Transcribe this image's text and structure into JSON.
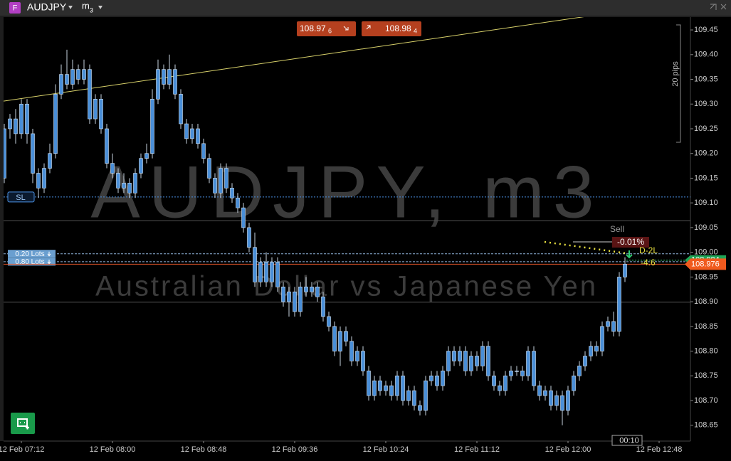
{
  "toolbar": {
    "symbol_badge": "F",
    "symbol": "AUDJPY",
    "timeframe": "m",
    "timeframe_sub": "3"
  },
  "trade_buttons": {
    "sell_main": "108.97",
    "sell_small": "6",
    "buy_main": "108.98",
    "buy_small": "4"
  },
  "chart_data": {
    "type": "candlestick",
    "watermark_title": "AUDJPY, m3",
    "watermark_subtitle": "Australian Dollar vs Japanese Yen",
    "categories": [
      null,
      null,
      null,
      null,
      "12 Feb 07:12",
      null,
      null,
      null,
      null,
      null,
      null,
      null,
      null,
      null,
      null,
      null,
      null,
      null,
      null,
      null,
      "12 Feb 08:00",
      null,
      null,
      null,
      null,
      null,
      null,
      null,
      null,
      null,
      null,
      null,
      null,
      null,
      null,
      null,
      "12 Feb 08:48",
      null,
      null,
      null,
      null,
      null,
      null,
      null,
      null,
      null,
      null,
      null,
      null,
      null,
      null,
      null,
      "12 Feb 09:36",
      null,
      null,
      null,
      null,
      null,
      null,
      null,
      null,
      null,
      null,
      null,
      null,
      null,
      null,
      null,
      "12 Feb 10:24",
      null,
      null,
      null,
      null,
      null,
      null,
      null,
      null,
      null,
      null,
      null,
      null,
      null,
      null,
      null,
      "12 Feb 11:12",
      null,
      null,
      null,
      null,
      null,
      null,
      null,
      null,
      null,
      null,
      null,
      null,
      null,
      null,
      null,
      "12 Feb 12:00",
      null,
      null,
      null,
      null,
      null,
      null,
      null,
      null,
      null,
      null,
      null,
      null,
      null,
      null,
      null,
      "12 Feb 12:48"
    ],
    "open": [
      109.23,
      109.15,
      109.25,
      109.27,
      109.24,
      109.3,
      109.24,
      109.16,
      109.13,
      109.17,
      109.2,
      109.32,
      109.36,
      109.34,
      109.37,
      109.35,
      109.37,
      109.27,
      109.31,
      109.25,
      109.18,
      109.16,
      109.13,
      109.14,
      109.12,
      109.16,
      109.19,
      109.2,
      109.31,
      109.37,
      109.34,
      109.37,
      109.32,
      109.26,
      109.23,
      109.25,
      109.22,
      109.19,
      109.15,
      109.12,
      109.17,
      109.13,
      109.11,
      109.09,
      109.05,
      109.01,
      108.94,
      108.98,
      108.94,
      108.98,
      108.93,
      108.9,
      108.92,
      108.88,
      108.93,
      108.92,
      108.93,
      108.91,
      108.87,
      108.85,
      108.8,
      108.84,
      108.82,
      108.78,
      108.8,
      108.76,
      108.71,
      108.74,
      108.72,
      108.73,
      108.71,
      108.75,
      108.7,
      108.72,
      108.69,
      108.68,
      108.74,
      108.75,
      108.73,
      108.76,
      108.8,
      108.78,
      108.8,
      108.76,
      108.79,
      108.77,
      108.81,
      108.75,
      108.73,
      108.72,
      108.75,
      108.76,
      108.76,
      108.75,
      108.8,
      108.73,
      108.71,
      108.72,
      108.69,
      108.71,
      108.68,
      108.72,
      108.75,
      108.77,
      108.79,
      108.81,
      108.8,
      108.85,
      108.86,
      108.84,
      108.95,
      null,
      null,
      null,
      null,
      null,
      null
    ],
    "high": [
      109.25,
      109.26,
      109.28,
      109.29,
      109.31,
      109.31,
      109.25,
      109.17,
      109.18,
      109.22,
      109.34,
      109.38,
      109.41,
      109.39,
      109.38,
      109.39,
      109.38,
      109.32,
      109.32,
      109.26,
      109.2,
      109.17,
      109.16,
      109.15,
      109.17,
      109.2,
      109.22,
      109.33,
      109.39,
      109.38,
      109.4,
      109.38,
      109.33,
      109.27,
      109.26,
      109.26,
      109.23,
      109.2,
      109.16,
      109.18,
      109.18,
      109.14,
      109.12,
      109.1,
      109.06,
      109.04,
      108.99,
      109.0,
      108.99,
      108.99,
      108.94,
      108.93,
      108.93,
      108.94,
      108.95,
      108.94,
      108.94,
      108.92,
      108.88,
      108.86,
      108.85,
      108.85,
      108.83,
      108.81,
      108.81,
      108.77,
      108.75,
      108.75,
      108.74,
      108.74,
      108.76,
      108.76,
      108.73,
      108.73,
      108.7,
      108.75,
      108.76,
      108.76,
      108.77,
      108.81,
      108.81,
      108.81,
      108.81,
      108.8,
      108.8,
      108.82,
      108.82,
      108.76,
      108.74,
      108.76,
      108.77,
      108.77,
      108.77,
      108.81,
      108.81,
      108.74,
      108.73,
      108.73,
      108.72,
      108.72,
      108.73,
      108.76,
      108.78,
      108.8,
      108.82,
      108.82,
      108.86,
      108.87,
      108.88,
      108.96,
      108.99,
      null,
      null,
      null,
      null,
      null,
      null
    ],
    "low": [
      109.13,
      109.14,
      109.23,
      109.22,
      109.23,
      109.22,
      109.14,
      109.11,
      109.12,
      109.16,
      109.19,
      109.31,
      109.33,
      109.33,
      109.34,
      109.34,
      109.26,
      109.26,
      109.24,
      109.17,
      109.15,
      109.12,
      109.12,
      109.11,
      109.11,
      109.15,
      109.18,
      109.19,
      109.3,
      109.33,
      109.33,
      109.31,
      109.25,
      109.22,
      109.22,
      109.21,
      109.18,
      109.14,
      109.11,
      109.11,
      109.12,
      109.1,
      109.08,
      109.04,
      109.0,
      108.93,
      108.93,
      108.93,
      108.93,
      108.92,
      108.89,
      108.87,
      108.87,
      108.87,
      108.91,
      108.91,
      108.9,
      108.86,
      108.84,
      108.79,
      108.77,
      108.81,
      108.77,
      108.77,
      108.75,
      108.7,
      108.7,
      108.71,
      108.71,
      108.7,
      108.7,
      108.69,
      108.69,
      108.68,
      108.67,
      108.67,
      108.73,
      108.72,
      108.72,
      108.75,
      108.77,
      108.77,
      108.75,
      108.75,
      108.76,
      108.76,
      108.74,
      108.72,
      108.71,
      108.71,
      108.74,
      108.75,
      108.74,
      108.74,
      108.72,
      108.7,
      108.7,
      108.68,
      108.68,
      108.65,
      108.67,
      108.71,
      108.74,
      108.76,
      108.78,
      108.79,
      108.79,
      108.84,
      108.83,
      108.83,
      108.94,
      null,
      null,
      null,
      null,
      null,
      null
    ],
    "close": [
      109.15,
      109.25,
      109.27,
      109.24,
      109.3,
      109.24,
      109.16,
      109.13,
      109.17,
      109.2,
      109.32,
      109.36,
      109.34,
      109.37,
      109.35,
      109.37,
      109.27,
      109.31,
      109.25,
      109.18,
      109.16,
      109.13,
      109.14,
      109.12,
      109.16,
      109.19,
      109.2,
      109.31,
      109.37,
      109.34,
      109.37,
      109.32,
      109.26,
      109.23,
      109.25,
      109.22,
      109.19,
      109.15,
      109.12,
      109.17,
      109.13,
      109.11,
      109.09,
      109.05,
      109.01,
      108.94,
      108.98,
      108.94,
      108.98,
      108.93,
      108.9,
      108.92,
      108.88,
      108.93,
      108.92,
      108.93,
      108.91,
      108.87,
      108.85,
      108.8,
      108.84,
      108.82,
      108.78,
      108.8,
      108.76,
      108.71,
      108.74,
      108.72,
      108.73,
      108.71,
      108.75,
      108.7,
      108.72,
      108.69,
      108.68,
      108.74,
      108.75,
      108.73,
      108.76,
      108.8,
      108.78,
      108.8,
      108.76,
      108.79,
      108.77,
      108.81,
      108.75,
      108.73,
      108.72,
      108.75,
      108.76,
      108.76,
      108.75,
      108.8,
      108.73,
      108.71,
      108.72,
      108.69,
      108.71,
      108.68,
      108.72,
      108.75,
      108.77,
      108.79,
      108.81,
      108.8,
      108.85,
      108.86,
      108.84,
      108.95,
      108.976,
      null,
      null,
      null,
      null,
      null,
      null
    ],
    "color": "#4a8fd8",
    "ylim": [
      108.618,
      109.476
    ],
    "yticks": [
      108.65,
      {
        "value": 108.7,
        "label": "108.70"
      },
      108.75,
      {
        "value": 108.8,
        "label": "108.80"
      },
      108.85,
      {
        "value": 108.9,
        "label": "108.90"
      },
      108.95,
      {
        "value": 109,
        "label": "109.00"
      },
      109.05,
      {
        "value": 109.1,
        "label": "109.10"
      },
      109.15,
      {
        "value": 109.2,
        "label": "109.20"
      },
      109.25,
      {
        "value": 109.3,
        "label": "109.30"
      },
      109.35,
      {
        "value": 109.4,
        "label": "109.40"
      },
      109.45
    ],
    "grid": false,
    "trendline": {
      "values": [
        109.306,
        109.508
      ],
      "color": "#d8d16a"
    },
    "stop_loss": {
      "label": "SL",
      "value": 109.112
    },
    "orders": [
      {
        "label": "0.20 Lots",
        "value": 108.997
      },
      {
        "label": "0.80 Lots",
        "value": 108.981
      }
    ],
    "horizontal_lines": [
      109.064,
      108.899
    ],
    "bid": 108.976,
    "ask": 108.984,
    "position": {
      "side": "Sell",
      "pnl": "-0.01%",
      "name": "D-2L",
      "pips": "-4.6"
    },
    "range_label": "20 pips",
    "countdown": "00:10"
  }
}
